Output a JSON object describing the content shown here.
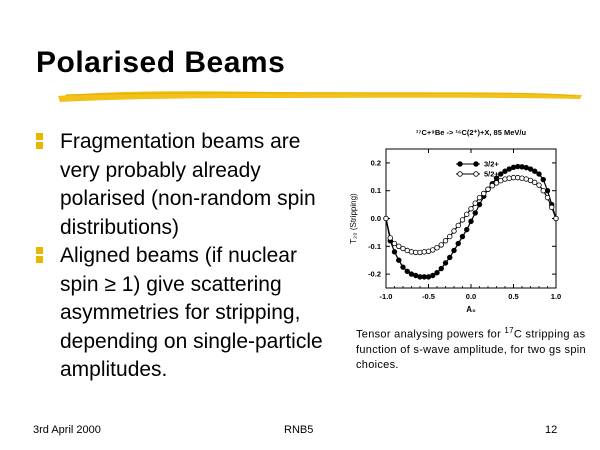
{
  "slide": {
    "title": "Polarised Beams",
    "colors": {
      "accent": "#e8b800",
      "underline": "#f2c21a"
    }
  },
  "bullets": [
    {
      "text": "Fragmentation beams are very probably already polarised (non-random spin distributions)"
    },
    {
      "text": "Aligned beams (if nuclear spin ≥ 1) give scattering asymmetries for stripping, depending on single-particle amplitudes."
    }
  ],
  "caption": {
    "prefix": "Tensor analysing powers for ",
    "sup": "17",
    "suffix": "C stripping as function of s-wave amplitude, for two gs spin choices."
  },
  "footer": {
    "date": "3rd April 2000",
    "center": "RNB5",
    "page": "12"
  },
  "chart_data": {
    "type": "line",
    "title": "¹⁷C+⁹Be -> ¹⁶C(2⁺)+X, 85 MeV/u",
    "xlabel": "A₀",
    "ylabel": "T₂₀ (Stripping)",
    "xlim": [
      -1.0,
      1.0
    ],
    "ylim": [
      -0.25,
      0.25
    ],
    "xticks": [
      "-1.0",
      "-0.5",
      "0.0",
      "0.5",
      "1.0"
    ],
    "yticks": [
      "0.2",
      "0.1",
      "0.0",
      "-0.1",
      "-0.2"
    ],
    "legend": "top-right",
    "series": [
      {
        "name": "3/2+",
        "marker": "filled",
        "x": [
          -1.0,
          -0.95,
          -0.9,
          -0.85,
          -0.8,
          -0.75,
          -0.7,
          -0.65,
          -0.6,
          -0.55,
          -0.5,
          -0.45,
          -0.4,
          -0.35,
          -0.3,
          -0.25,
          -0.2,
          -0.15,
          -0.1,
          -0.05,
          0.0,
          0.05,
          0.1,
          0.15,
          0.2,
          0.25,
          0.3,
          0.35,
          0.4,
          0.45,
          0.5,
          0.55,
          0.6,
          0.65,
          0.7,
          0.75,
          0.8,
          0.85,
          0.9,
          0.95,
          1.0
        ],
        "y": [
          0.0,
          -0.08,
          -0.12,
          -0.15,
          -0.175,
          -0.19,
          -0.2,
          -0.205,
          -0.21,
          -0.21,
          -0.21,
          -0.205,
          -0.195,
          -0.18,
          -0.16,
          -0.14,
          -0.115,
          -0.09,
          -0.065,
          -0.04,
          -0.01,
          0.02,
          0.05,
          0.08,
          0.105,
          0.125,
          0.145,
          0.16,
          0.17,
          0.178,
          0.184,
          0.187,
          0.186,
          0.183,
          0.178,
          0.17,
          0.16,
          0.14,
          0.1,
          0.05,
          0.0
        ]
      },
      {
        "name": "5/2+",
        "marker": "open",
        "x": [
          -1.0,
          -0.95,
          -0.9,
          -0.85,
          -0.8,
          -0.75,
          -0.7,
          -0.65,
          -0.6,
          -0.55,
          -0.5,
          -0.45,
          -0.4,
          -0.35,
          -0.3,
          -0.25,
          -0.2,
          -0.15,
          -0.1,
          -0.05,
          0.0,
          0.05,
          0.1,
          0.15,
          0.2,
          0.25,
          0.3,
          0.35,
          0.4,
          0.45,
          0.5,
          0.55,
          0.6,
          0.65,
          0.7,
          0.75,
          0.8,
          0.85,
          0.9,
          0.95,
          1.0
        ],
        "y": [
          0.0,
          -0.07,
          -0.09,
          -0.1,
          -0.108,
          -0.115,
          -0.12,
          -0.122,
          -0.122,
          -0.12,
          -0.118,
          -0.113,
          -0.105,
          -0.095,
          -0.08,
          -0.065,
          -0.045,
          -0.025,
          -0.005,
          0.015,
          0.035,
          0.055,
          0.075,
          0.09,
          0.105,
          0.118,
          0.128,
          0.136,
          0.142,
          0.145,
          0.147,
          0.147,
          0.145,
          0.142,
          0.137,
          0.13,
          0.12,
          0.1,
          0.075,
          0.04,
          0.0
        ]
      }
    ]
  }
}
